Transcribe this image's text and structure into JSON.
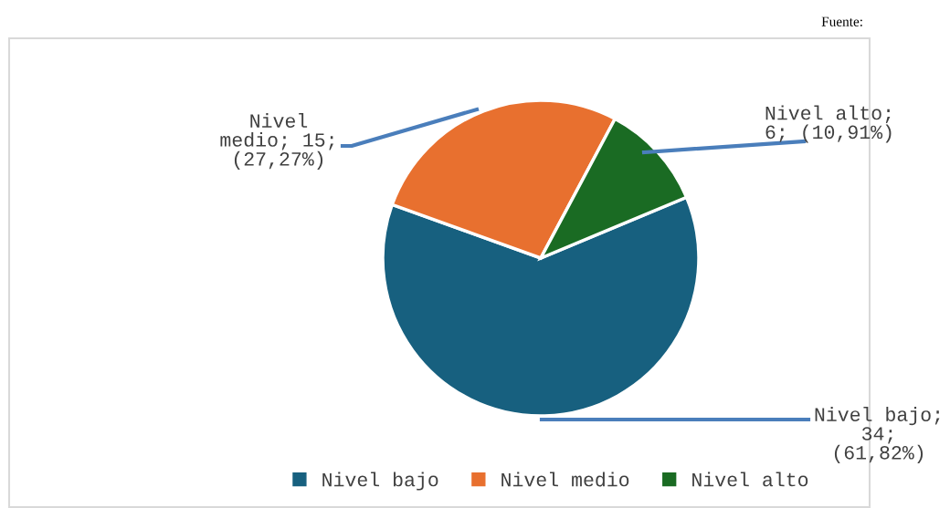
{
  "chart_data": {
    "type": "pie",
    "categories": [
      "Nivel bajo",
      "Nivel medio",
      "Nivel alto"
    ],
    "values": [
      34,
      15,
      6
    ],
    "colors": [
      "#17607f",
      "#e8702f",
      "#1a6b23"
    ],
    "value_labels": [
      "Nivel bajo;\n34;\n(61,82%)",
      "Nivel\nmedio; 15;\n(27,27%)",
      "Nivel alto;\n6; (10,91%)"
    ],
    "legend": "bottom",
    "annotations": [
      "Fuente:"
    ]
  }
}
